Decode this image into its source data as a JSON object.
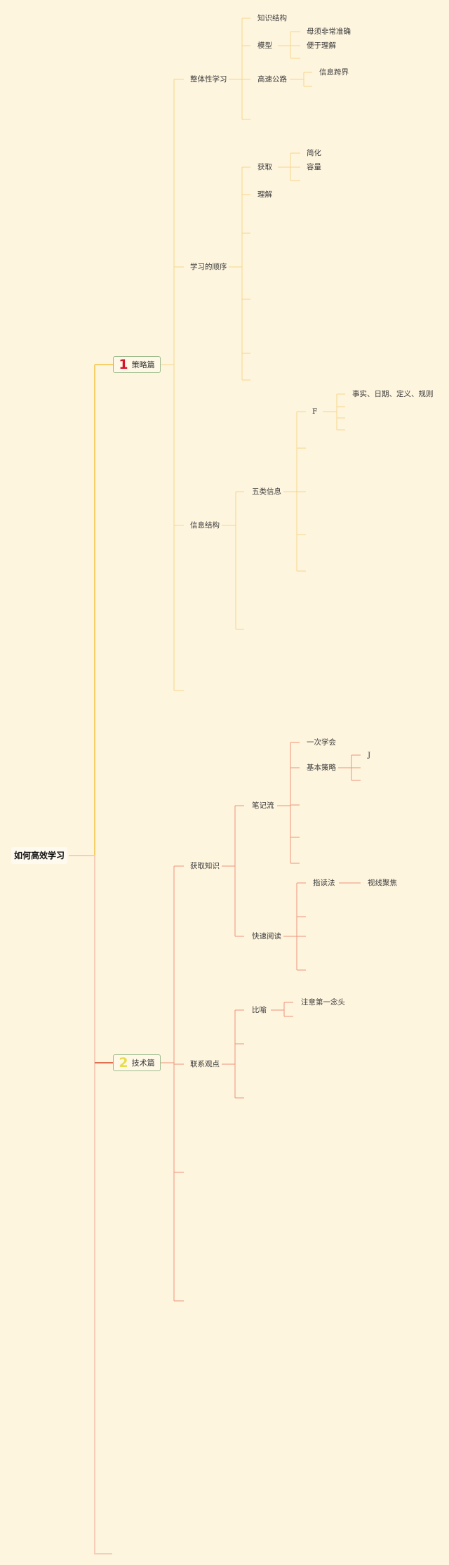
{
  "colors": {
    "background": "#FEF5DF",
    "branch1_line": "#F7D27A",
    "branch2_line": "#EE9479",
    "badge1": "#D3132D",
    "badge2": "#E9DC4C"
  },
  "root": {
    "label": "如何高效学习"
  },
  "branch1": {
    "number": "1",
    "label": "策略篇",
    "n1": {
      "label": "整体性学习",
      "c1": "知识结构",
      "c2": {
        "label": "模型",
        "c1": "母须非常准确",
        "c2": "便于理解"
      },
      "c3": {
        "label": "高速公路",
        "c1": "信息跨界"
      }
    },
    "n2": {
      "label": "学习的顺序",
      "c1": {
        "label": "获取",
        "c1": "简化",
        "c2": "容量"
      },
      "c2": "理解"
    },
    "n3": {
      "label": "信息结构",
      "c1": {
        "label": "五类信息",
        "c1": {
          "label": "F",
          "c1": "事实、日期、定义、规则"
        }
      }
    }
  },
  "branch2": {
    "number": "2",
    "label": "技术篇",
    "n1": {
      "label": "获取知识",
      "c1": {
        "label": "笔记流",
        "c1": "一次学会",
        "c2": {
          "label": "基本策略",
          "c1": "J"
        }
      },
      "c2": {
        "label": "快速阅读",
        "c1": {
          "label": "指读法",
          "c1": "视线聚焦"
        }
      }
    },
    "n2": {
      "label": "联系观点",
      "c1": {
        "label": "比喻",
        "c1": "注意第一念头"
      }
    }
  }
}
